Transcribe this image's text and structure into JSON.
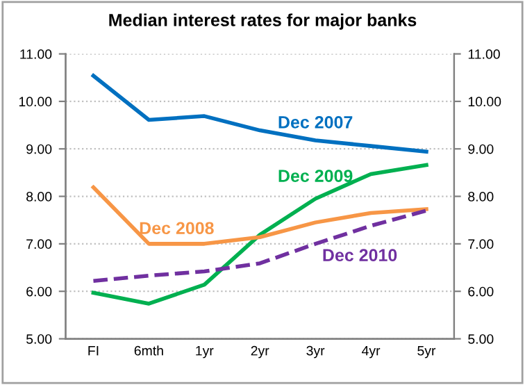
{
  "chart_data": {
    "type": "line",
    "title": "Median interest rates for major banks",
    "categories": [
      "FI",
      "6mth",
      "1yr",
      "2yr",
      "3yr",
      "4yr",
      "5yr"
    ],
    "series": [
      {
        "name": "Dec 2007",
        "color": "#0070c0",
        "values": [
          10.54,
          9.61,
          9.69,
          9.39,
          9.18,
          9.06,
          8.94
        ]
      },
      {
        "name": "Dec 2009",
        "color": "#00b050",
        "values": [
          5.97,
          5.74,
          6.14,
          7.19,
          7.95,
          8.47,
          8.66
        ]
      },
      {
        "name": "Dec 2008",
        "color": "#f79646",
        "values": [
          8.19,
          7.0,
          7.0,
          7.14,
          7.45,
          7.65,
          7.73
        ]
      },
      {
        "name": "Dec 2010",
        "color": "#7030a0",
        "line_style": "dashed",
        "values": [
          6.22,
          6.33,
          6.42,
          6.59,
          7.0,
          7.38,
          7.7
        ]
      }
    ],
    "ylim": [
      5,
      11
    ],
    "yticks": [
      {
        "value": 5,
        "label": "5.00"
      },
      {
        "value": 6,
        "label": "6.00"
      },
      {
        "value": 7,
        "label": "7.00"
      },
      {
        "value": 8,
        "label": "8.00"
      },
      {
        "value": 9,
        "label": "9.00"
      },
      {
        "value": 10,
        "label": "10.00"
      },
      {
        "value": 11,
        "label": "11.00"
      }
    ],
    "y2lim": [
      5,
      11
    ],
    "y2ticks": [
      {
        "value": 5,
        "label": "5.00"
      },
      {
        "value": 6,
        "label": "6.00"
      },
      {
        "value": 7,
        "label": "7.00"
      },
      {
        "value": 8,
        "label": "8.00"
      },
      {
        "value": 9,
        "label": "9.00"
      },
      {
        "value": 10,
        "label": "10.00"
      },
      {
        "value": 11,
        "label": "11.00"
      }
    ],
    "grid": "y",
    "legend": false,
    "marker": "none"
  }
}
